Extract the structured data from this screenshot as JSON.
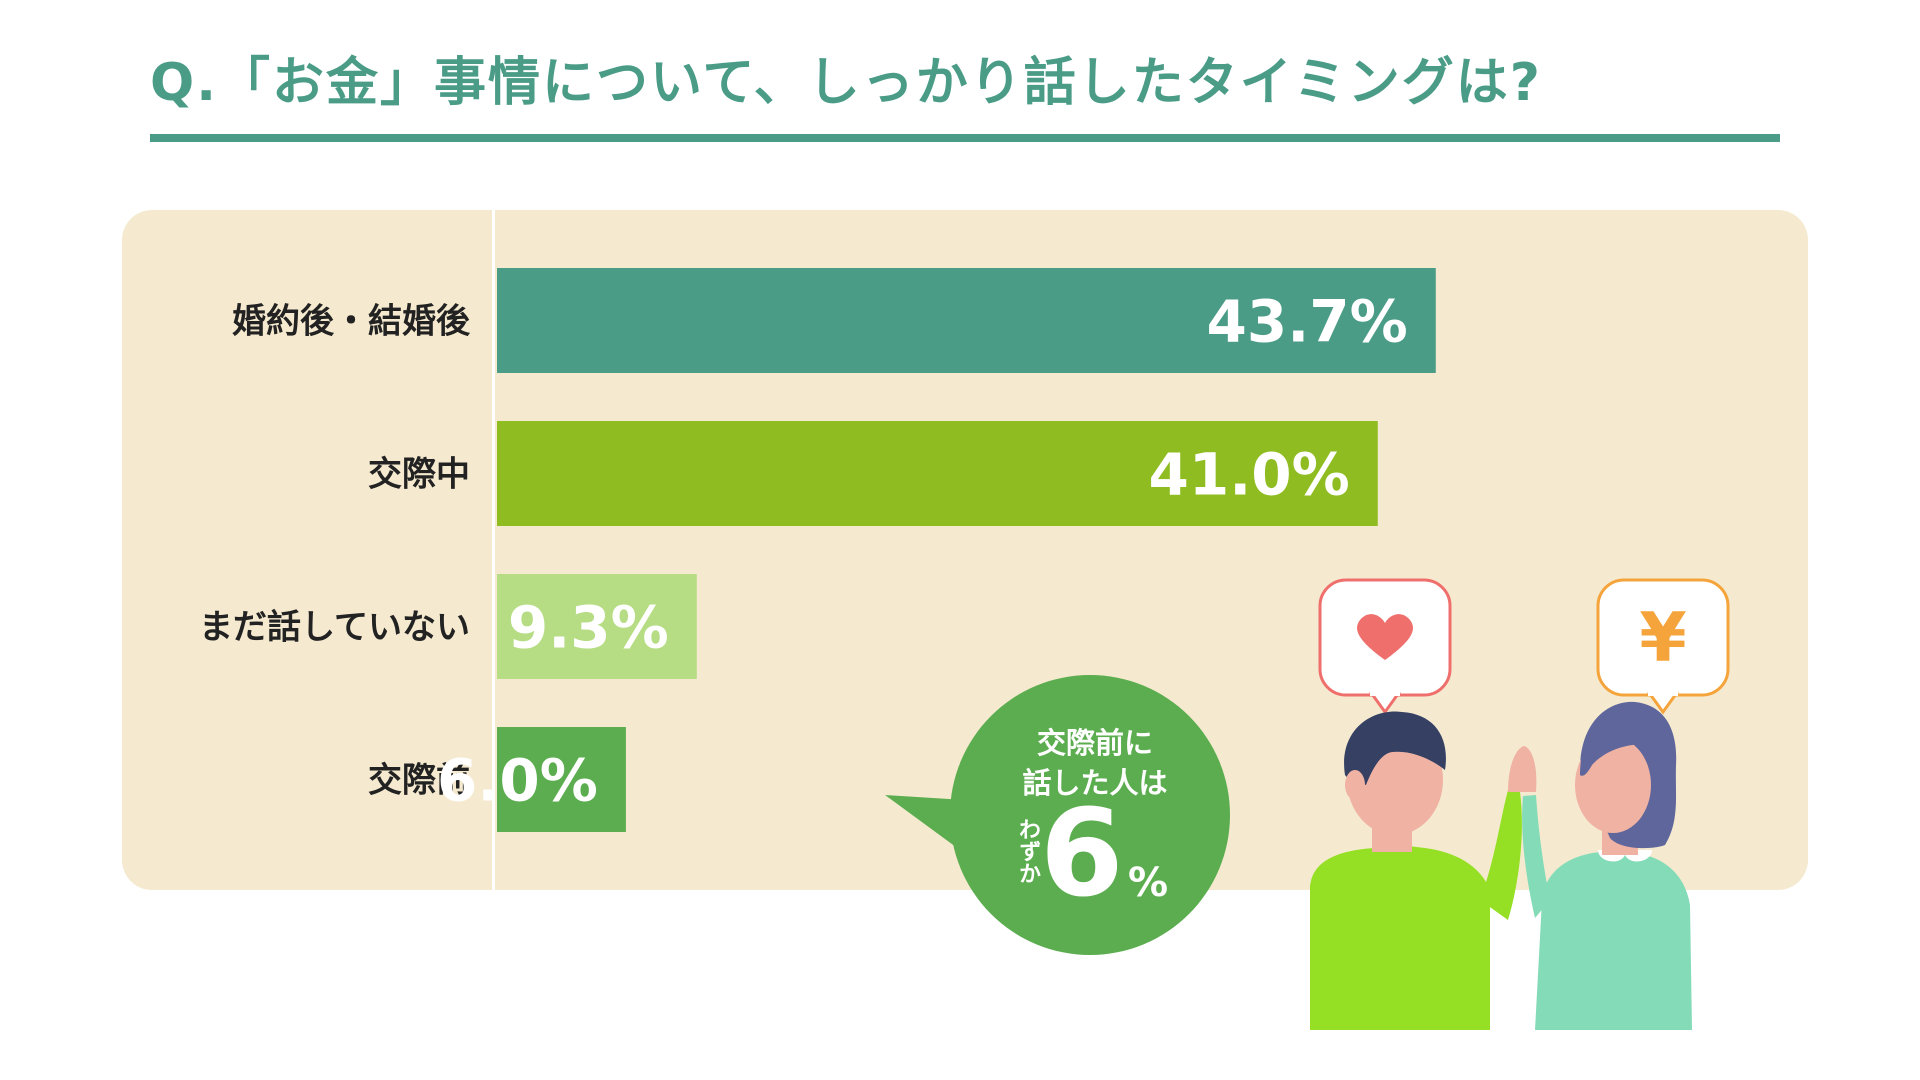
{
  "title": "Q.「お金」事情について、しっかり話したタイミングは?",
  "chart_data": {
    "type": "bar",
    "orientation": "horizontal",
    "categories": [
      "婚約後・結婚後",
      "交際中",
      "まだ話していない",
      "交際前"
    ],
    "values": [
      43.7,
      41.0,
      9.3,
      6.0
    ],
    "value_labels": [
      "43.7%",
      "41.0%",
      "9.3%",
      "6.0%"
    ],
    "colors": [
      "#4a9c87",
      "#8fbd21",
      "#b6dc84",
      "#5bad4f"
    ],
    "xlim": [
      0,
      56
    ],
    "title": "",
    "xlabel": "",
    "ylabel": ""
  },
  "callout": {
    "line1": "交際前に",
    "line2": "話した人は",
    "small": "わずか",
    "big": "6",
    "unit": "%",
    "color": "#5bad4f"
  },
  "icons": {
    "left_bubble": "heart-icon",
    "right_bubble": "yen-icon",
    "yen_glyph": "¥"
  }
}
